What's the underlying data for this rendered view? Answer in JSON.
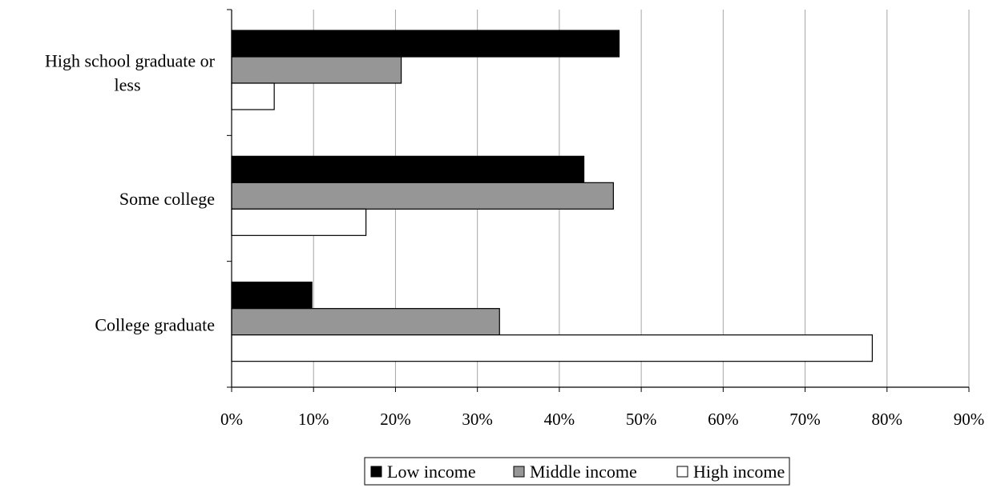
{
  "chart_data": {
    "type": "bar",
    "orientation": "horizontal",
    "categories": [
      "High school graduate or less",
      "Some college",
      "College graduate"
    ],
    "category_lines": [
      [
        "High school graduate or",
        "less"
      ],
      [
        "Some college"
      ],
      [
        "College graduate"
      ]
    ],
    "series": [
      {
        "name": "Low income",
        "color": "#000000",
        "values": [
          47.3,
          43.0,
          9.8
        ]
      },
      {
        "name": "Middle income",
        "color": "#969696",
        "values": [
          20.7,
          46.6,
          32.7
        ]
      },
      {
        "name": "High income",
        "color": "#ffffff",
        "values": [
          5.2,
          16.4,
          78.2
        ]
      }
    ],
    "xlim": [
      0,
      90
    ],
    "xticks": [
      "0%",
      "10%",
      "20%",
      "30%",
      "40%",
      "50%",
      "60%",
      "70%",
      "80%",
      "90%"
    ],
    "grid": true,
    "legend_position": "bottom"
  }
}
